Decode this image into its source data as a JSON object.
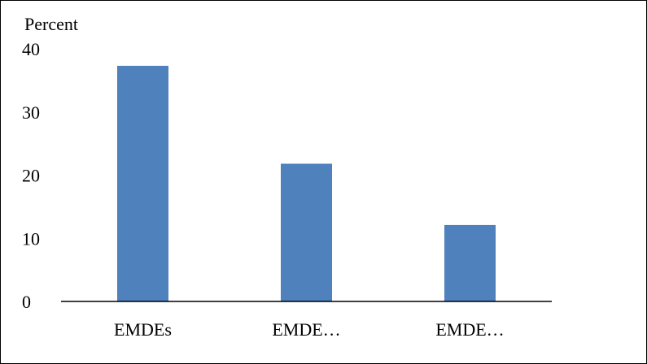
{
  "chart_data": {
    "type": "bar",
    "ylabel": "Percent",
    "categories": [
      "EMDEs",
      "EMDE…",
      "EMDE…"
    ],
    "values": [
      37.3,
      21.8,
      12.1
    ],
    "ylim": [
      0,
      40
    ],
    "yticks": [
      "0",
      "10",
      "20",
      "30",
      "40"
    ],
    "grid": false,
    "legend": "none",
    "colors": {
      "bar": "#4f81bd",
      "axis": "#000000"
    }
  }
}
